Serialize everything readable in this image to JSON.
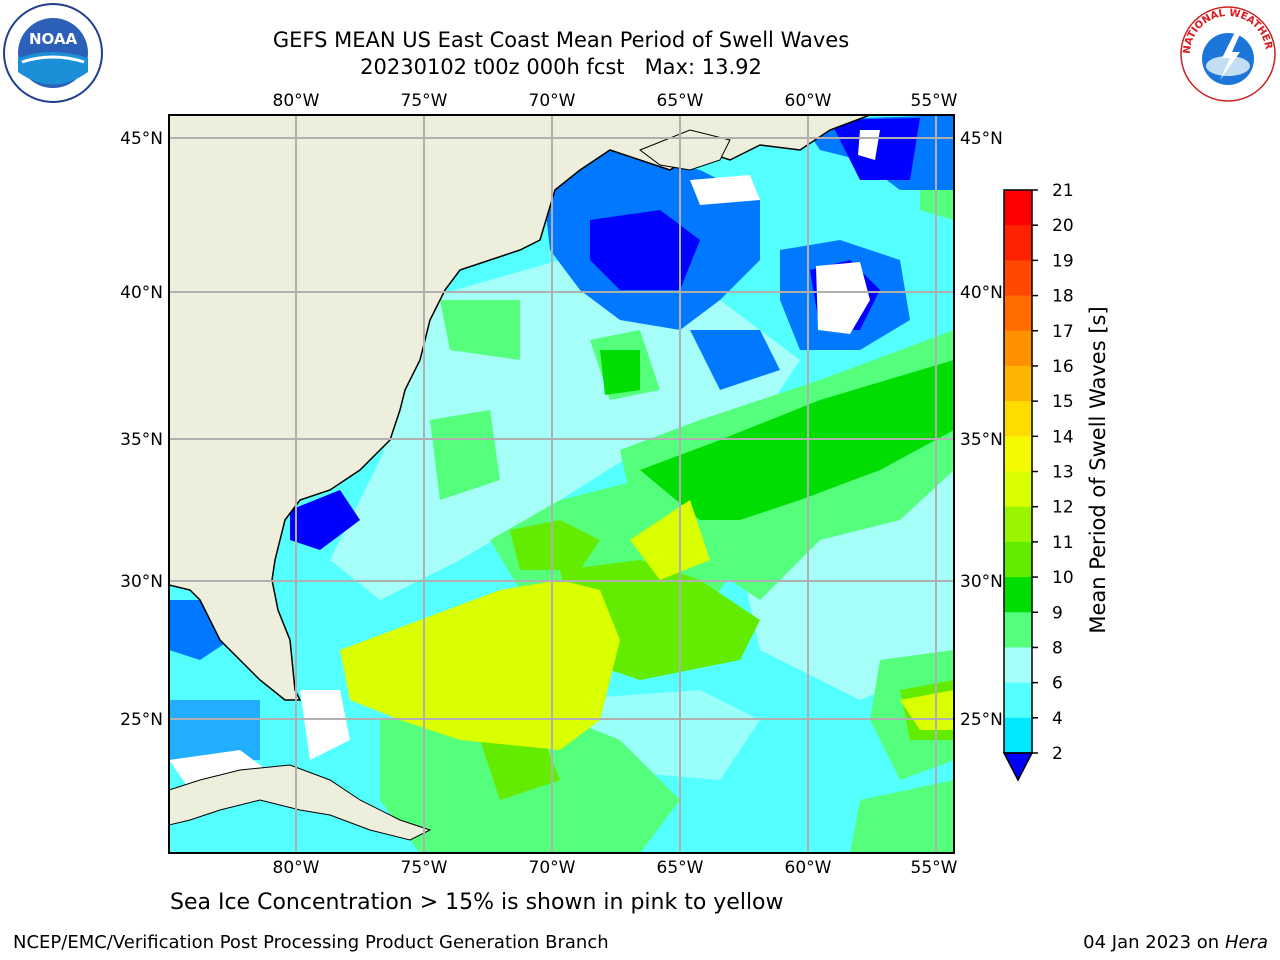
{
  "title": {
    "line1": "GEFS MEAN US East Coast Mean Period of Swell Waves",
    "line2": "20230102 t00z 000h fcst   Max: 13.92"
  },
  "map": {
    "lon_ticks": [
      "80°W",
      "75°W",
      "70°W",
      "65°W",
      "60°W",
      "55°W"
    ],
    "lat_ticks": [
      "45°N",
      "40°N",
      "35°N",
      "30°N",
      "25°N"
    ],
    "land_color": "#eeeedc",
    "grid_color": "#b0b0b0"
  },
  "colorbar": {
    "label": "Mean Period of Swell Waves [s]",
    "ticks": [
      "21",
      "20",
      "19",
      "18",
      "17",
      "16",
      "15",
      "14",
      "13",
      "12",
      "11",
      "10",
      "9",
      "8",
      "6",
      "4",
      "2"
    ],
    "colors": [
      "#ff0000",
      "#ff2200",
      "#ff4800",
      "#ff6c00",
      "#ff9100",
      "#ffb400",
      "#ffdc00",
      "#f5fa00",
      "#d9ff00",
      "#9cf500",
      "#64ec00",
      "#00dd00",
      "#54ff7c",
      "#a5fff8",
      "#54ffff",
      "#00e8ff",
      "#0078ff"
    ],
    "under_color": "#0000ff"
  },
  "logos": {
    "noaa_text": "NOAA",
    "nws_text": "NATIONAL WEATHER SERVICE"
  },
  "notes": {
    "sea_ice": "Sea Ice Concentration > 15% is shown in pink to yellow"
  },
  "footer": {
    "left": "NCEP/EMC/Verification Post Processing Product Generation Branch",
    "date": "04 Jan 2023 on",
    "host": "Hera"
  }
}
